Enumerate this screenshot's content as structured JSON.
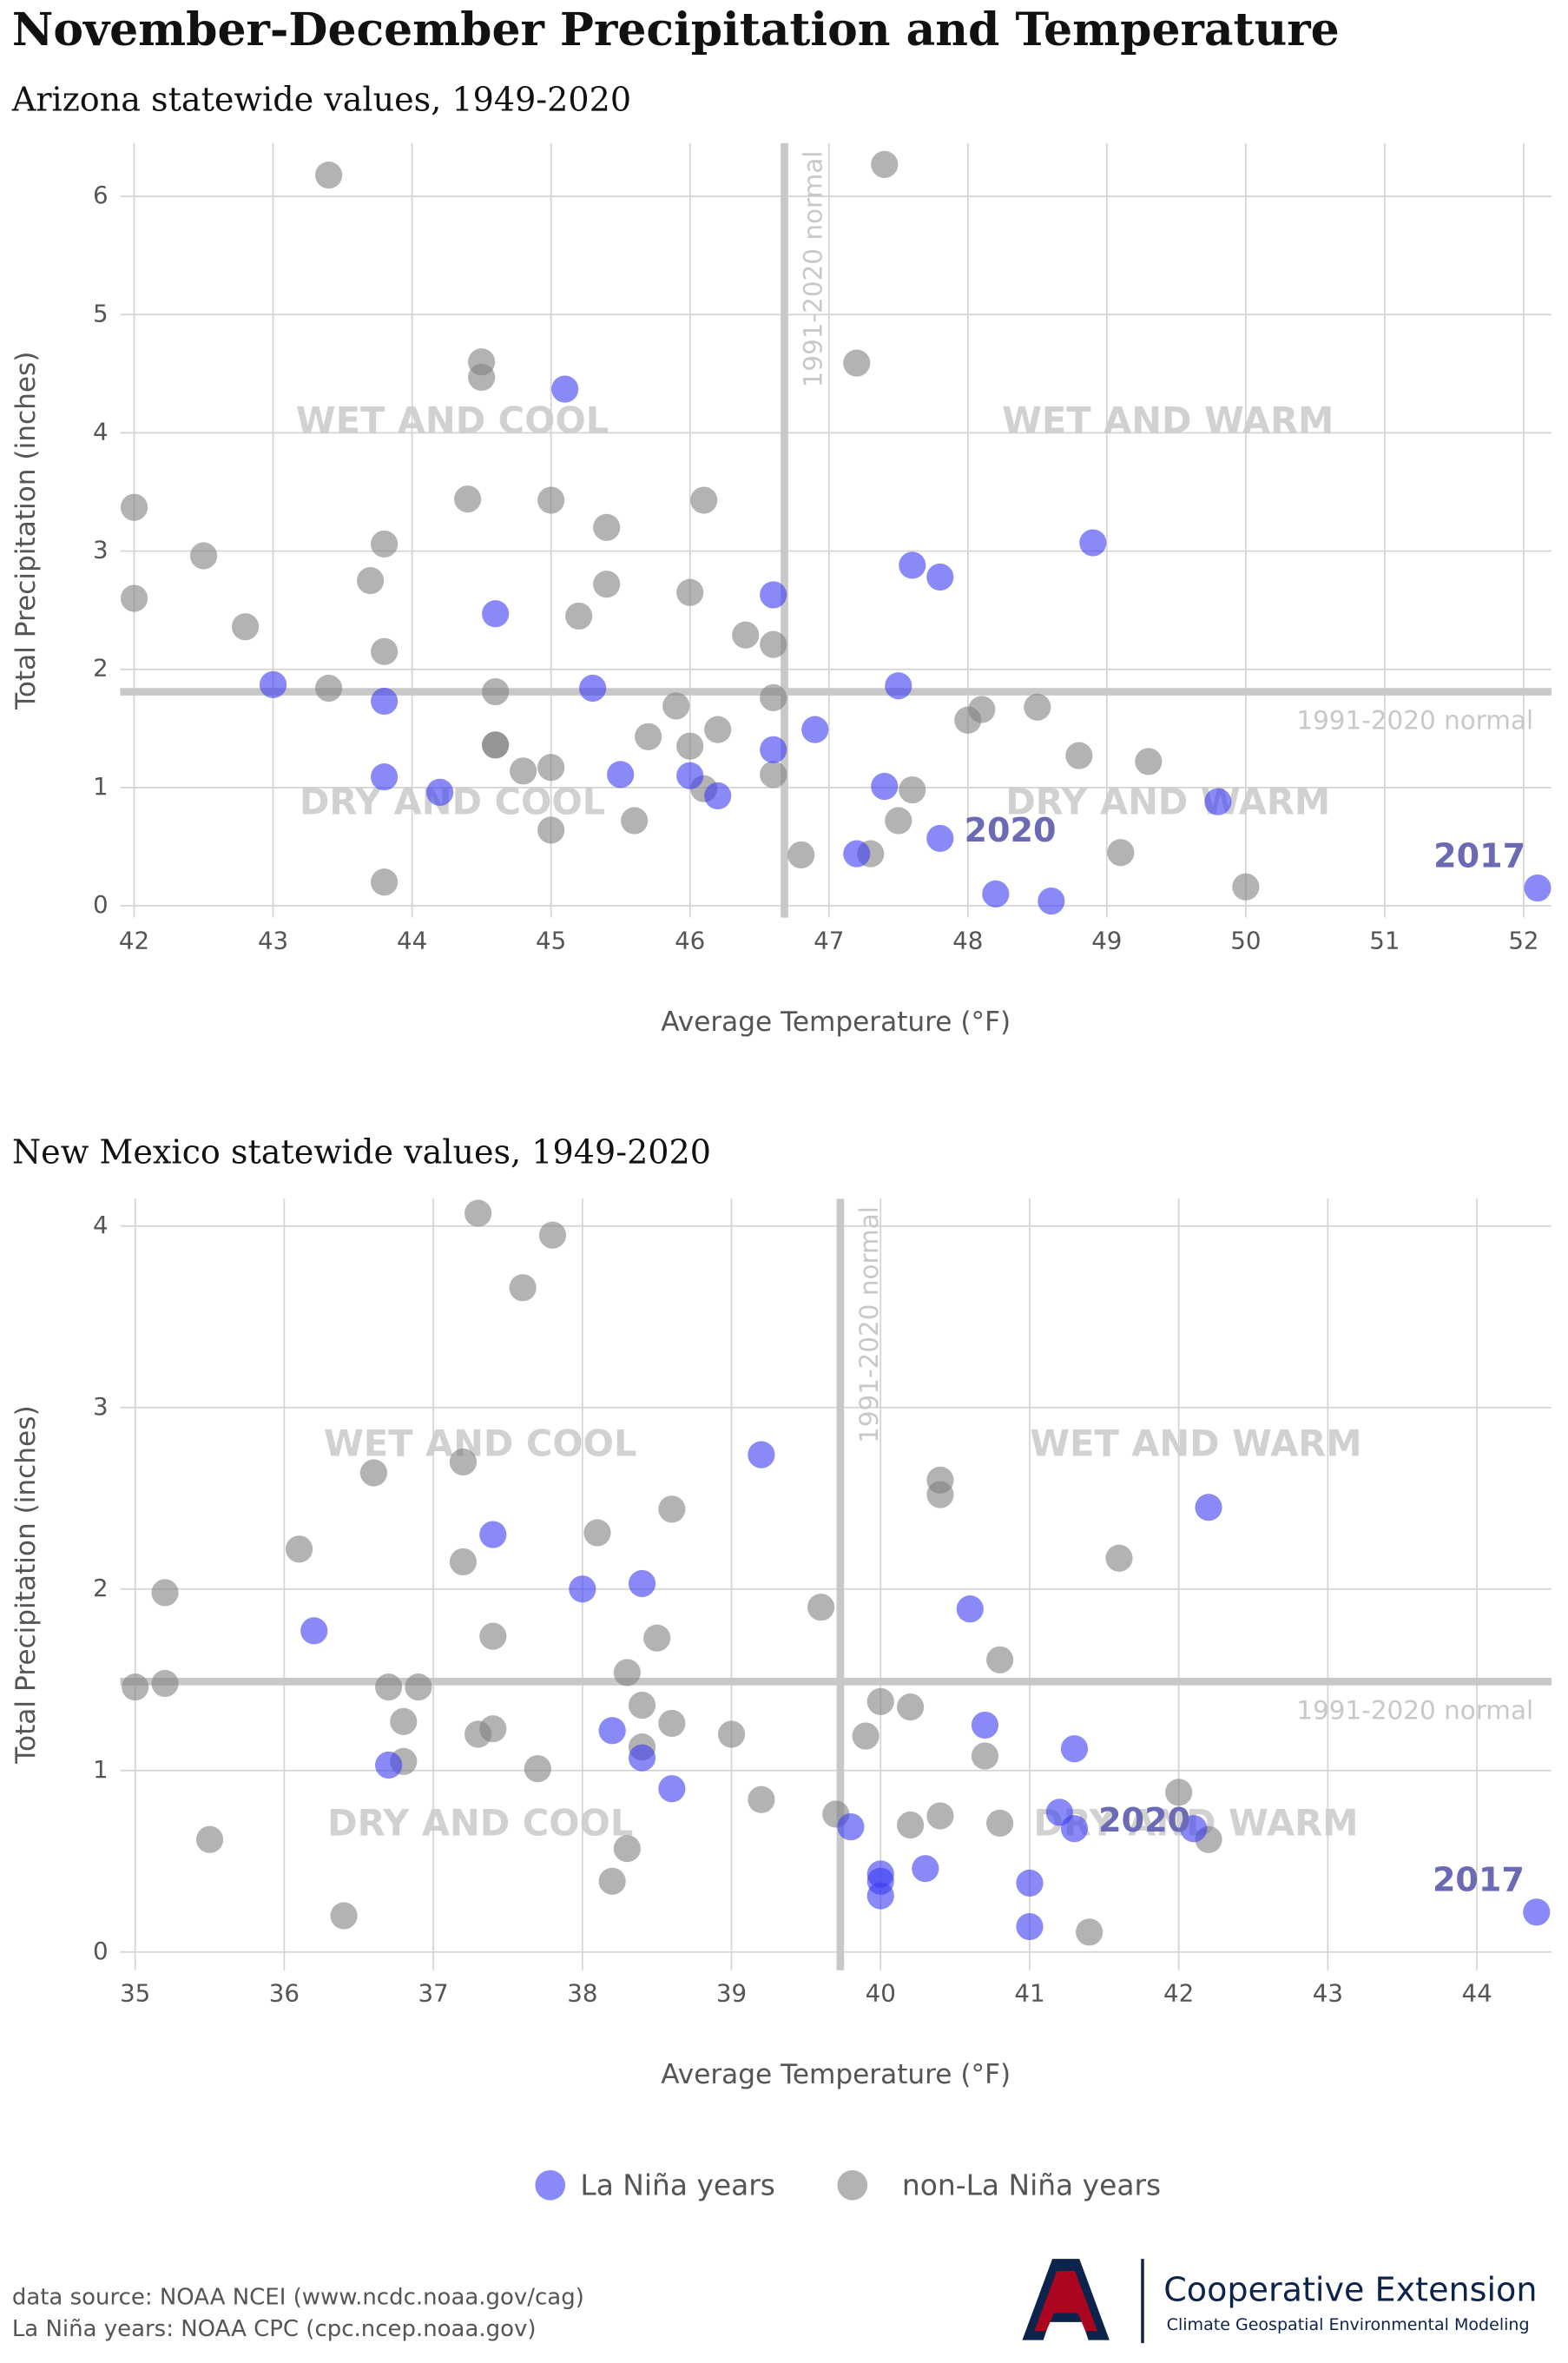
{
  "title": "November-December Precipitation and Temperature",
  "chart_data": [
    {
      "type": "scatter",
      "subtitle": "Arizona statewide values, 1949-2020",
      "x_label": "Average Temperature (°F)",
      "y_label": "Total Precipitation (inches)",
      "xlim": [
        41.9,
        52.2
      ],
      "ylim": [
        -0.1,
        6.45
      ],
      "xticks": [
        42,
        43,
        44,
        45,
        46,
        47,
        48,
        49,
        50,
        51,
        52
      ],
      "yticks": [
        0,
        1,
        2,
        3,
        4,
        5,
        6
      ],
      "grid": true,
      "normal_x": 46.68,
      "normal_y": 1.81,
      "normal_label_x": "1991-2020 normal",
      "normal_label_y": "1991-2020 normal",
      "quadrant_labels": {
        "wet_cool": "WET AND COOL",
        "wet_warm": "WET AND WARM",
        "dry_cool": "DRY AND COOL",
        "dry_warm": "DRY AND WARM"
      },
      "series": [
        {
          "name": "La Niña years",
          "color": "#3a3af2",
          "x": [
            43.0,
            43.8,
            43.8,
            44.2,
            44.6,
            45.1,
            45.3,
            45.5,
            46.0,
            46.2,
            46.6,
            46.6,
            46.9,
            47.2,
            47.4,
            47.5,
            47.6,
            47.8,
            47.8,
            48.2,
            48.6,
            48.9,
            49.8,
            52.1
          ],
          "values": [
            1.87,
            1.73,
            1.09,
            0.96,
            2.47,
            4.37,
            1.84,
            1.11,
            1.1,
            0.93,
            2.63,
            1.32,
            1.49,
            0.44,
            1.01,
            1.86,
            2.88,
            2.78,
            0.57,
            0.1,
            0.04,
            3.07,
            0.88,
            0.15
          ],
          "point_labels": [
            null,
            null,
            null,
            null,
            null,
            null,
            null,
            null,
            null,
            null,
            null,
            null,
            null,
            null,
            null,
            null,
            null,
            null,
            "2020",
            null,
            null,
            null,
            null,
            "2017"
          ]
        },
        {
          "name": "non-La Niña years",
          "color": "#808080",
          "x": [
            42.0,
            42.0,
            42.5,
            42.8,
            43.4,
            43.4,
            43.7,
            43.8,
            43.8,
            43.8,
            44.4,
            44.5,
            44.5,
            44.6,
            44.6,
            44.6,
            44.8,
            45.0,
            45.0,
            45.0,
            45.2,
            45.4,
            45.4,
            45.6,
            45.7,
            45.9,
            46.0,
            46.0,
            46.1,
            46.1,
            46.2,
            46.4,
            46.6,
            46.6,
            46.6,
            46.8,
            47.2,
            47.3,
            47.4,
            47.5,
            47.6,
            48.0,
            48.1,
            48.5,
            48.8,
            49.1,
            49.3,
            50.0
          ],
          "values": [
            3.37,
            2.6,
            2.96,
            2.36,
            6.18,
            1.84,
            2.75,
            3.06,
            2.15,
            0.2,
            3.44,
            4.6,
            4.47,
            1.81,
            1.36,
            1.36,
            1.14,
            3.43,
            1.17,
            0.64,
            2.45,
            3.2,
            2.72,
            0.72,
            1.43,
            1.69,
            2.65,
            1.35,
            3.43,
            0.99,
            1.49,
            2.29,
            2.21,
            1.76,
            1.11,
            0.43,
            4.59,
            0.44,
            6.27,
            0.72,
            0.98,
            1.57,
            1.66,
            1.68,
            1.27,
            0.45,
            1.22,
            0.16
          ]
        }
      ]
    },
    {
      "type": "scatter",
      "subtitle": "New Mexico statewide values, 1949-2020",
      "x_label": "Average Temperature (°F)",
      "y_label": "Total Precipitation (inches)",
      "xlim": [
        34.9,
        44.5
      ],
      "ylim": [
        -0.1,
        4.15
      ],
      "xticks": [
        35,
        36,
        37,
        38,
        39,
        40,
        41,
        42,
        43,
        44
      ],
      "yticks": [
        0,
        1,
        2,
        3,
        4
      ],
      "grid": true,
      "normal_x": 39.73,
      "normal_y": 1.49,
      "normal_label_x": "1991-2020 normal",
      "normal_label_y": "1991-2020 normal",
      "quadrant_labels": {
        "wet_cool": "WET AND COOL",
        "wet_warm": "WET AND WARM",
        "dry_cool": "DRY AND COOL",
        "dry_warm": "DRY AND WARM"
      },
      "series": [
        {
          "color": "#3a3af2",
          "x": [
            36.2,
            36.7,
            37.4,
            38.0,
            38.2,
            38.4,
            38.4,
            38.6,
            39.2,
            39.8,
            40.0,
            40.0,
            40.0,
            40.3,
            40.6,
            40.7,
            41.0,
            41.0,
            41.2,
            41.3,
            41.3,
            42.1,
            42.2,
            44.4
          ],
          "values": [
            1.77,
            1.03,
            2.3,
            2.0,
            1.22,
            2.03,
            1.07,
            0.9,
            2.74,
            0.69,
            0.43,
            0.39,
            0.31,
            0.46,
            1.89,
            1.25,
            0.38,
            0.14,
            0.77,
            1.12,
            0.68,
            0.68,
            2.45,
            0.22
          ],
          "point_labels": [
            null,
            null,
            null,
            null,
            null,
            null,
            null,
            null,
            null,
            null,
            null,
            null,
            null,
            null,
            null,
            null,
            null,
            null,
            null,
            null,
            "2020",
            null,
            null,
            "2017"
          ]
        },
        {
          "color": "#808080",
          "x": [
            35.0,
            35.2,
            35.2,
            35.5,
            36.1,
            36.4,
            36.6,
            36.7,
            36.8,
            36.8,
            36.9,
            37.2,
            37.2,
            37.3,
            37.3,
            37.4,
            37.4,
            37.6,
            37.7,
            37.8,
            38.1,
            38.2,
            38.3,
            38.3,
            38.4,
            38.4,
            38.5,
            38.6,
            38.6,
            39.0,
            39.2,
            39.6,
            39.7,
            39.9,
            40.0,
            40.2,
            40.2,
            40.4,
            40.4,
            40.4,
            40.7,
            40.8,
            40.8,
            41.4,
            41.6,
            42.0,
            42.2
          ],
          "values": [
            1.46,
            1.98,
            1.48,
            0.62,
            2.22,
            0.2,
            2.64,
            1.46,
            1.27,
            1.05,
            1.46,
            2.7,
            2.15,
            4.07,
            1.2,
            1.74,
            1.23,
            3.66,
            1.01,
            3.95,
            2.31,
            0.39,
            1.54,
            0.57,
            1.36,
            1.13,
            1.73,
            2.44,
            1.26,
            1.2,
            0.84,
            1.9,
            0.76,
            1.19,
            1.38,
            1.35,
            0.7,
            2.6,
            2.52,
            0.75,
            1.08,
            1.61,
            0.71,
            0.11,
            2.17,
            0.88,
            0.62
          ]
        }
      ]
    }
  ],
  "footer": {
    "sources": [
      "data source: NOAA NCEI (www.ncdc.noaa.gov/cag)",
      "La Niña years: NOAA CPC (cpc.ncep.noaa.gov)"
    ]
  },
  "logo": {
    "name": "Cooperative Extension",
    "unit": "Climate Geospatial Environmental Modeling"
  }
}
